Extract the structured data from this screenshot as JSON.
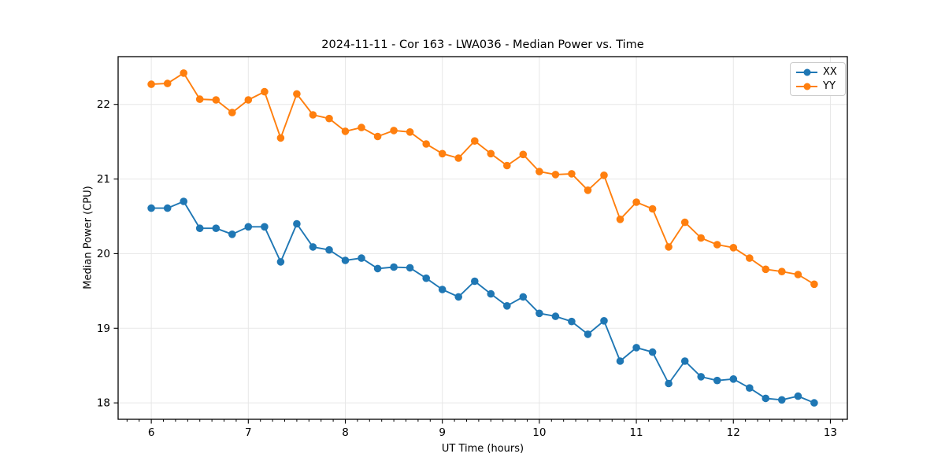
{
  "chart_data": {
    "type": "line",
    "title": "2024-11-11 - Cor 163 - LWA036 - Median Power vs. Time",
    "xlabel": "UT Time (hours)",
    "ylabel": "Median Power (CPU)",
    "xlim": [
      5.658,
      13.175
    ],
    "ylim": [
      17.78,
      22.64
    ],
    "x_ticks": [
      6,
      7,
      8,
      9,
      10,
      11,
      12,
      13
    ],
    "y_ticks": [
      18,
      19,
      20,
      21,
      22
    ],
    "x_minor_step": 0.125,
    "grid": true,
    "grid_color": "#e7e7e7",
    "legend_position": "upper right",
    "marker": "circle",
    "x": [
      6.0,
      6.1667,
      6.3333,
      6.5,
      6.6667,
      6.8333,
      7.0,
      7.1667,
      7.3333,
      7.5,
      7.6667,
      7.8333,
      8.0,
      8.1667,
      8.3333,
      8.5,
      8.6667,
      8.8333,
      9.0,
      9.1667,
      9.3333,
      9.5,
      9.6667,
      9.8333,
      10.0,
      10.1667,
      10.3333,
      10.5,
      10.6667,
      10.8333,
      11.0,
      11.1667,
      11.3333,
      11.5,
      11.6667,
      11.8333,
      12.0,
      12.1667,
      12.3333,
      12.5,
      12.6667,
      12.8333
    ],
    "series": [
      {
        "name": "XX",
        "color": "#1f77b4",
        "values": [
          20.61,
          20.61,
          20.7,
          20.34,
          20.34,
          20.26,
          20.36,
          20.36,
          19.89,
          20.4,
          20.09,
          20.05,
          19.91,
          19.94,
          19.8,
          19.82,
          19.81,
          19.67,
          19.52,
          19.42,
          19.63,
          19.46,
          19.3,
          19.42,
          19.2,
          19.16,
          19.09,
          18.92,
          19.1,
          18.56,
          18.74,
          18.68,
          18.26,
          18.56,
          18.35,
          18.3,
          18.32,
          18.2,
          18.06,
          18.04,
          18.09,
          18.0
        ]
      },
      {
        "name": "YY",
        "color": "#ff7f0e",
        "values": [
          22.27,
          22.28,
          22.42,
          22.07,
          22.06,
          21.89,
          22.06,
          22.17,
          21.55,
          22.14,
          21.86,
          21.81,
          21.64,
          21.69,
          21.57,
          21.65,
          21.63,
          21.47,
          21.34,
          21.28,
          21.51,
          21.34,
          21.18,
          21.33,
          21.1,
          21.06,
          21.07,
          20.85,
          21.05,
          20.46,
          20.69,
          20.6,
          20.09,
          20.42,
          20.21,
          20.12,
          20.08,
          19.94,
          19.79,
          19.76,
          19.72,
          19.59
        ]
      }
    ]
  },
  "axis_style": {
    "spine_color": "#000000",
    "tick_color": "#000000",
    "tick_label_color": "#000000",
    "background": "#ffffff"
  }
}
